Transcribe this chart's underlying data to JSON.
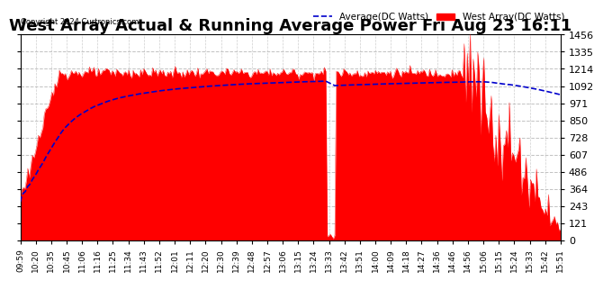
{
  "title": "West Array Actual & Running Average Power Fri Aug 23 16:11",
  "copyright": "Copyright 2024 Curtronics.com",
  "legend_avg": "Average(DC Watts)",
  "legend_west": "West Array(DC Watts)",
  "yticks": [
    0.0,
    121.4,
    242.7,
    364.1,
    485.5,
    606.8,
    728.2,
    849.5,
    970.9,
    1092.3,
    1213.6,
    1335.0,
    1456.4
  ],
  "ylim": [
    0.0,
    1456.4
  ],
  "xtick_labels": [
    "09:59",
    "10:20",
    "10:35",
    "10:45",
    "11:06",
    "11:16",
    "11:25",
    "11:34",
    "11:43",
    "11:52",
    "12:01",
    "12:11",
    "12:20",
    "12:30",
    "12:39",
    "12:48",
    "12:57",
    "13:06",
    "13:15",
    "13:24",
    "13:33",
    "13:42",
    "13:51",
    "14:00",
    "14:09",
    "14:18",
    "14:27",
    "14:36",
    "14:46",
    "14:56",
    "15:06",
    "15:15",
    "15:24",
    "15:33",
    "15:42",
    "15:51"
  ],
  "title_fontsize": 13,
  "label_fontsize": 7.5,
  "ytick_fontsize": 8,
  "xtick_fontsize": 6.5,
  "bar_color": "#ff0000",
  "avg_color": "#0000cc",
  "background_color": "#ffffff",
  "plot_bg_color": "#ffffff",
  "title_color": "#000000",
  "copyright_color": "#000000",
  "legend_avg_color": "#0000cc",
  "legend_west_color": "#ff0000",
  "grid_color": "#bbbbbb",
  "grid_style": "--"
}
